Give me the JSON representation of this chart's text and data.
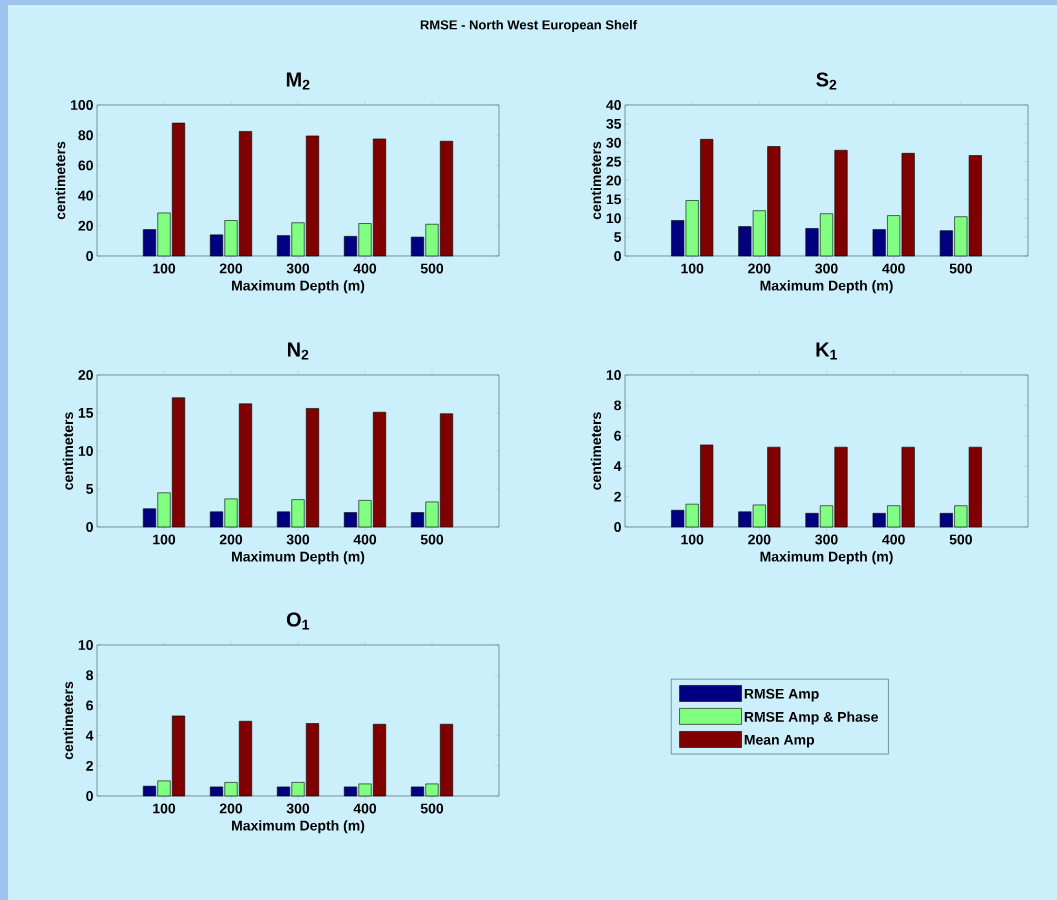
{
  "chart_data": [
    {
      "type": "bar",
      "title": "M$_{2}$",
      "annotations": [
        "RMSE - North West European Shelf"
      ],
      "xlabel": "Maximum Depth (m)",
      "ylabel": "centimeters",
      "categories": [
        "100",
        "200",
        "300",
        "400",
        "500"
      ],
      "ylim": [
        0,
        100
      ],
      "yticks": [
        0,
        20,
        40,
        60,
        80,
        100
      ],
      "series": [
        {
          "color": "#000080",
          "values": [
            17.5,
            14,
            13.5,
            13,
            12.5
          ]
        },
        {
          "color": "#80ff80",
          "values": [
            28.5,
            23.5,
            22,
            21.5,
            21
          ]
        },
        {
          "color": "#800000",
          "values": [
            88,
            82.5,
            79.5,
            77.5,
            76
          ]
        }
      ]
    },
    {
      "type": "bar",
      "title": "S$_{2}$",
      "xlabel": "Maximum Depth (m)",
      "ylabel": "centimeters",
      "categories": [
        "100",
        "200",
        "300",
        "400",
        "500"
      ],
      "ylim": [
        0,
        40
      ],
      "yticks": [
        0,
        5,
        10,
        15,
        20,
        25,
        30,
        35,
        40
      ],
      "series": [
        {
          "color": "#000080",
          "values": [
            9.4,
            7.8,
            7.3,
            7.0,
            6.7
          ]
        },
        {
          "color": "#80ff80",
          "values": [
            14.7,
            12.0,
            11.2,
            10.7,
            10.4
          ]
        },
        {
          "color": "#800000",
          "values": [
            30.9,
            29.0,
            28.0,
            27.2,
            26.6
          ]
        }
      ]
    },
    {
      "type": "bar",
      "title": "N$_{2}$",
      "xlabel": "Maximum Depth (m)",
      "ylabel": "centimeters",
      "categories": [
        "100",
        "200",
        "300",
        "400",
        "500"
      ],
      "ylim": [
        0,
        20
      ],
      "yticks": [
        0,
        5,
        10,
        15,
        20
      ],
      "series": [
        {
          "color": "#000080",
          "values": [
            2.4,
            2.0,
            2.0,
            1.9,
            1.9
          ]
        },
        {
          "color": "#80ff80",
          "values": [
            4.5,
            3.7,
            3.6,
            3.5,
            3.3
          ]
        },
        {
          "color": "#800000",
          "values": [
            17.0,
            16.2,
            15.6,
            15.1,
            14.9
          ]
        }
      ]
    },
    {
      "type": "bar",
      "title": "K$_{1}$",
      "xlabel": "Maximum Depth (m)",
      "ylabel": "centimeters",
      "categories": [
        "100",
        "200",
        "300",
        "400",
        "500"
      ],
      "ylim": [
        0,
        10
      ],
      "yticks": [
        0,
        2,
        4,
        6,
        8,
        10
      ],
      "series": [
        {
          "color": "#000080",
          "values": [
            1.1,
            1.0,
            0.9,
            0.9,
            0.9
          ]
        },
        {
          "color": "#80ff80",
          "values": [
            1.5,
            1.45,
            1.4,
            1.4,
            1.4
          ]
        },
        {
          "color": "#800000",
          "values": [
            5.4,
            5.25,
            5.25,
            5.25,
            5.25
          ]
        }
      ]
    },
    {
      "type": "bar",
      "title": "O$_{1}$",
      "xlabel": "Maximum Depth (m)",
      "ylabel": "centimeters",
      "categories": [
        "100",
        "200",
        "300",
        "400",
        "500"
      ],
      "ylim": [
        0,
        10
      ],
      "yticks": [
        0,
        2,
        4,
        6,
        8,
        10
      ],
      "legend": "right",
      "series": [
        {
          "name": "RMSE Amp",
          "color": "#000080",
          "values": [
            0.65,
            0.6,
            0.6,
            0.6,
            0.6
          ]
        },
        {
          "name": "RMSE Amp & Phase",
          "color": "#80ff80",
          "values": [
            1.0,
            0.9,
            0.9,
            0.8,
            0.8
          ]
        },
        {
          "name": "Mean Amp",
          "color": "#800000",
          "values": [
            5.3,
            4.95,
            4.8,
            4.75,
            4.75
          ]
        }
      ]
    }
  ]
}
